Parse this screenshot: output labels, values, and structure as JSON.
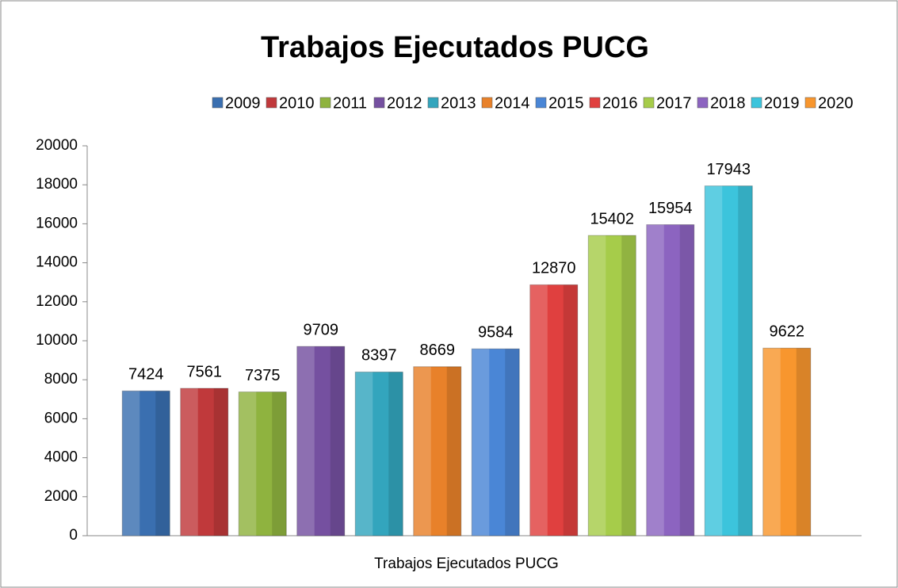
{
  "chart_data": {
    "type": "bar",
    "title": "Trabajos Ejecutados PUCG",
    "categories": [
      "Trabajos Ejecutados PUCG"
    ],
    "series": [
      {
        "name": "2009",
        "color": "#3a6fb0",
        "values": [
          7424
        ]
      },
      {
        "name": "2010",
        "color": "#c0393b",
        "values": [
          7561
        ]
      },
      {
        "name": "2011",
        "color": "#8fb33f",
        "values": [
          7375
        ]
      },
      {
        "name": "2012",
        "color": "#7550a0",
        "values": [
          9709
        ]
      },
      {
        "name": "2013",
        "color": "#33a5bd",
        "values": [
          8397
        ]
      },
      {
        "name": "2014",
        "color": "#e8812a",
        "values": [
          8669
        ]
      },
      {
        "name": "2015",
        "color": "#4a86d6",
        "values": [
          9584
        ]
      },
      {
        "name": "2016",
        "color": "#e0403f",
        "values": [
          12870
        ]
      },
      {
        "name": "2017",
        "color": "#a6cc4a",
        "values": [
          15402
        ]
      },
      {
        "name": "2018",
        "color": "#8c64c0",
        "values": [
          15954
        ]
      },
      {
        "name": "2019",
        "color": "#3cc4dc",
        "values": [
          17943
        ]
      },
      {
        "name": "2020",
        "color": "#f8962e",
        "values": [
          9622
        ]
      }
    ],
    "ylim": [
      0,
      20000
    ],
    "yticks": [
      0,
      2000,
      4000,
      6000,
      8000,
      10000,
      12000,
      14000,
      16000,
      18000,
      20000
    ],
    "grid": false,
    "legend": "top"
  }
}
